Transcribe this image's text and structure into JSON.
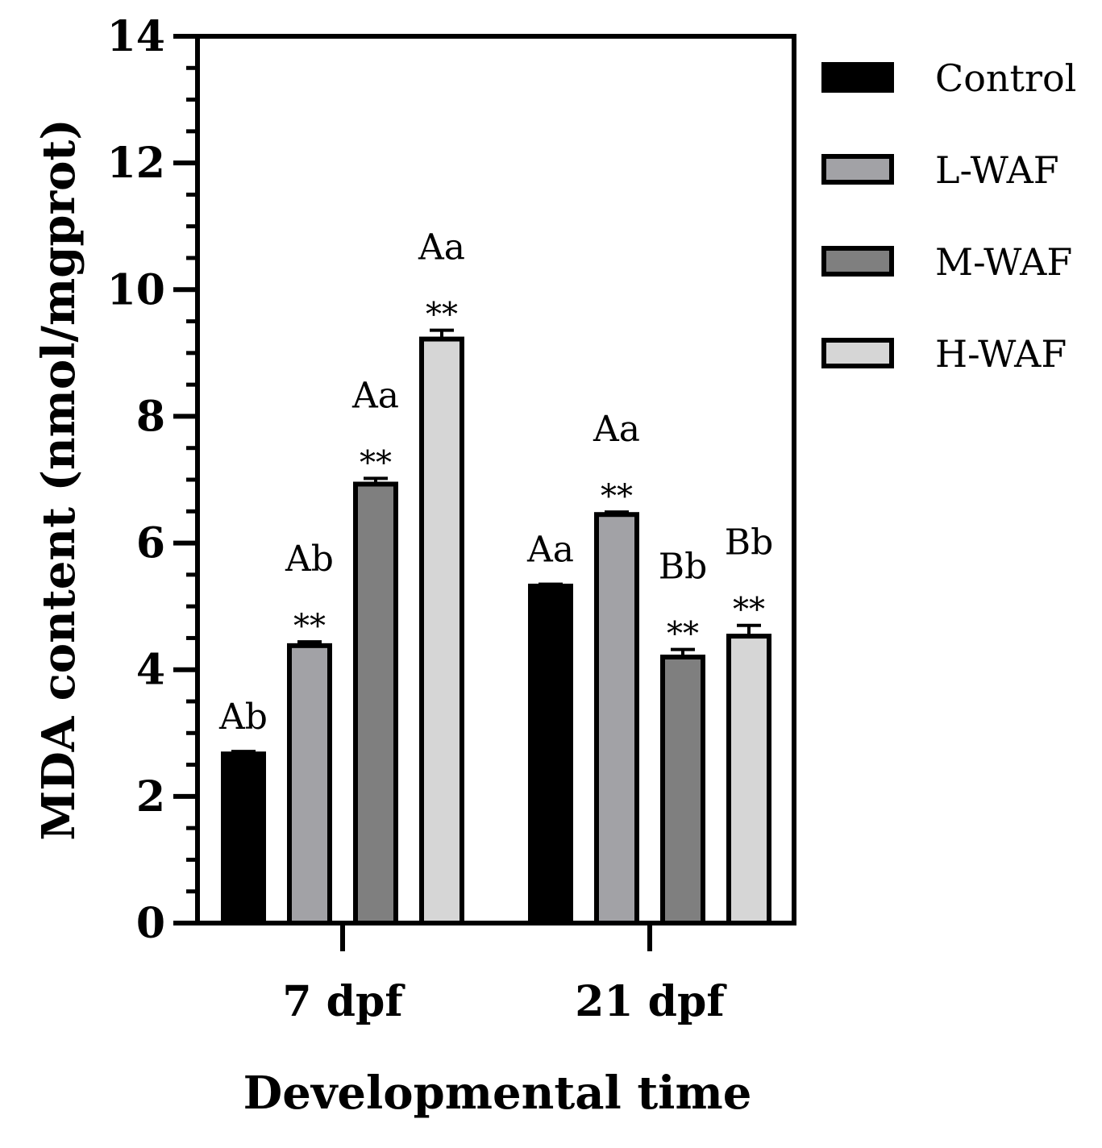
{
  "chart_data": {
    "type": "bar",
    "title": "",
    "xlabel": "Developmental time",
    "ylabel": "MDA content (nmol/mgprot)",
    "ylim": [
      0,
      14
    ],
    "yticks": [
      0,
      2,
      4,
      6,
      8,
      10,
      12,
      14
    ],
    "categories": [
      "7 dpf",
      "21 dpf"
    ],
    "legend_position": "right",
    "series": [
      {
        "name": "Control",
        "color": "#000000",
        "values": [
          2.67,
          5.32
        ],
        "errors": [
          0.04,
          0.03
        ],
        "significance": [
          "",
          ""
        ],
        "letters": [
          "Ab",
          "Aa"
        ]
      },
      {
        "name": "L-WAF",
        "color": "#a2a2a6",
        "values": [
          4.38,
          6.45
        ],
        "errors": [
          0.06,
          0.04
        ],
        "significance": [
          "**",
          "**"
        ],
        "letters": [
          "Ab",
          "Aa"
        ]
      },
      {
        "name": "M-WAF",
        "color": "#7f7f7f",
        "values": [
          6.93,
          4.2
        ],
        "errors": [
          0.09,
          0.12
        ],
        "significance": [
          "**",
          "**"
        ],
        "letters": [
          "Aa",
          "Bb"
        ]
      },
      {
        "name": "H-WAF",
        "color": "#d6d6d6",
        "values": [
          9.22,
          4.53
        ],
        "errors": [
          0.14,
          0.17
        ],
        "significance": [
          "**",
          "**"
        ],
        "letters": [
          "Aa",
          "Bb"
        ]
      }
    ]
  }
}
